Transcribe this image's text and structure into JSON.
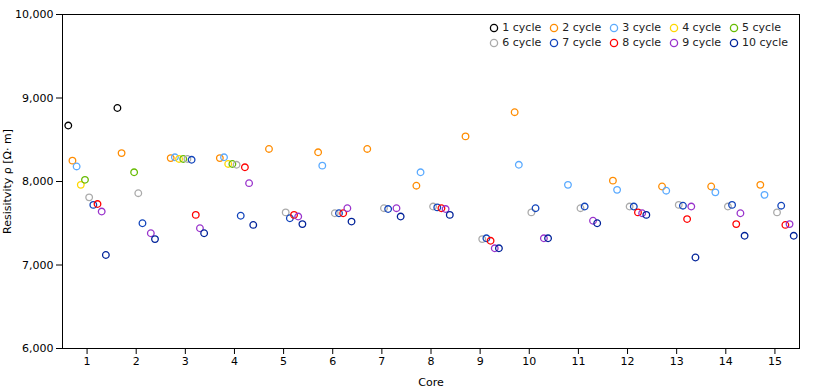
{
  "chart_data": {
    "type": "scatter",
    "xlabel": "Core",
    "ylabel": "Resisitvity ρ [Ω· m]",
    "x": [
      1,
      2,
      3,
      4,
      5,
      6,
      7,
      8,
      9,
      10,
      11,
      12,
      13,
      14,
      15
    ],
    "xlim": [
      0.5,
      15.5
    ],
    "xticks": [
      1,
      2,
      3,
      4,
      5,
      6,
      7,
      8,
      9,
      10,
      11,
      12,
      13,
      14,
      15
    ],
    "ylim": [
      6000,
      10000
    ],
    "yticks": [
      {
        "value": 6000,
        "label": "6,000"
      },
      {
        "value": 7000,
        "label": "7,000"
      },
      {
        "value": 8000,
        "label": "8,000"
      },
      {
        "value": 9000,
        "label": "9,000"
      },
      {
        "value": 10000,
        "label": "10,000"
      }
    ],
    "grid": false,
    "legend": "upper right",
    "marker": "circle",
    "series": [
      {
        "name": "1 cycle",
        "color": "#000000",
        "values": [
          8670,
          8880,
          null,
          null,
          null,
          null,
          null,
          null,
          null,
          null,
          null,
          null,
          null,
          null,
          null
        ]
      },
      {
        "name": "2 cycle",
        "color": "#FF8C00",
        "values": [
          8250,
          8340,
          8280,
          8280,
          8390,
          8350,
          8390,
          7950,
          8540,
          8830,
          null,
          8010,
          7940,
          7940,
          7960
        ]
      },
      {
        "name": "3 cycle",
        "color": "#5AAAFF",
        "values": [
          8180,
          null,
          8290,
          8290,
          null,
          8190,
          null,
          8110,
          null,
          8200,
          7960,
          7900,
          7890,
          7870,
          7840
        ]
      },
      {
        "name": "4 cycle",
        "color": "#FFD700",
        "values": [
          7960,
          null,
          8270,
          8210,
          null,
          null,
          null,
          null,
          null,
          null,
          null,
          null,
          null,
          null,
          null
        ]
      },
      {
        "name": "5 cycle",
        "color": "#66BB00",
        "values": [
          8020,
          8110,
          8270,
          8210,
          null,
          null,
          null,
          null,
          null,
          null,
          null,
          null,
          null,
          null,
          null
        ]
      },
      {
        "name": "6 cycle",
        "color": "#AAAAAA",
        "values": [
          7810,
          7860,
          8270,
          8200,
          7630,
          7620,
          7680,
          7700,
          7310,
          7630,
          7680,
          7700,
          7720,
          7700,
          7630
        ]
      },
      {
        "name": "7 cycle",
        "color": "#1144BB",
        "values": [
          7720,
          7500,
          8260,
          7590,
          7560,
          7620,
          7670,
          7690,
          7320,
          7680,
          7700,
          7700,
          7710,
          7720,
          7710
        ]
      },
      {
        "name": "8 cycle",
        "color": "#FF0000",
        "values": [
          7730,
          null,
          7600,
          8170,
          7600,
          7620,
          null,
          7680,
          7290,
          null,
          null,
          7630,
          7550,
          7490,
          7480
        ]
      },
      {
        "name": "9 cycle",
        "color": "#9933CC",
        "values": [
          7640,
          7380,
          7440,
          7980,
          7580,
          7680,
          7680,
          7670,
          7200,
          7320,
          7530,
          7620,
          7700,
          7620,
          7490
        ]
      },
      {
        "name": "10 cycle",
        "color": "#002299",
        "values": [
          7120,
          7310,
          7380,
          7480,
          7490,
          7520,
          7580,
          7600,
          7200,
          7320,
          7500,
          7600,
          7090,
          7350,
          7350
        ]
      }
    ]
  }
}
